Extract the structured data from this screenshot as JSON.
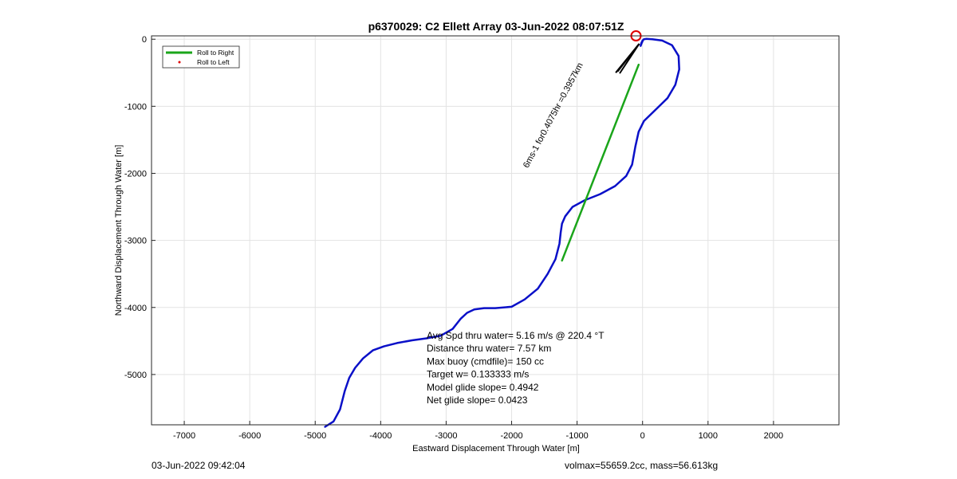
{
  "chart_data": {
    "type": "line",
    "title": "p6370029: C2 Ellett Array 03-Jun-2022 08:07:51Z",
    "xlabel": "Eastward Displacement Through Water [m]",
    "ylabel": "Northward Displacement Through Water [m]",
    "xlim": [
      -7500,
      3000
    ],
    "ylim": [
      -5750,
      50
    ],
    "xticks": [
      -7000,
      -6000,
      -5000,
      -4000,
      -3000,
      -2000,
      -1000,
      0,
      1000,
      2000
    ],
    "xtick_labels": [
      "-7000",
      "-6000",
      "-5000",
      "-4000",
      "-3000",
      "-2000",
      "-1000",
      "0",
      "1000",
      "2000"
    ],
    "yticks": [
      0,
      -1000,
      -2000,
      -3000,
      -4000,
      -5000
    ],
    "ytick_labels": [
      "0",
      "-1000",
      "-2000",
      "-3000",
      "-4000",
      "-5000"
    ],
    "grid": true,
    "legend": {
      "placement": "top-left",
      "entries": [
        {
          "label": "Roll to Right",
          "color": "#1aa51a",
          "style": "line"
        },
        {
          "label": "Roll to Left",
          "color": "#e00000",
          "style": "dot"
        }
      ]
    },
    "series": [
      {
        "color": "#0a10c8",
        "x": [
          -4850,
          -4720,
          -4620,
          -4550,
          -4480,
          -4390,
          -4270,
          -4120,
          -3950,
          -3750,
          -3520,
          -3300,
          -3080,
          -2900,
          -2780,
          -2680,
          -2570,
          -2420,
          -2250,
          -2000,
          -1800,
          -1600,
          -1450,
          -1330,
          -1270,
          -1250,
          -1230,
          -1180,
          -1070,
          -880,
          -650,
          -420,
          -250,
          -160,
          -110,
          -60,
          20,
          200,
          380,
          500,
          560,
          550,
          450,
          300,
          150,
          60,
          20,
          0,
          -20,
          -30,
          -15,
          10
        ],
        "y": [
          -5780,
          -5700,
          -5520,
          -5250,
          -5050,
          -4900,
          -4760,
          -4640,
          -4580,
          -4530,
          -4490,
          -4460,
          -4420,
          -4320,
          -4170,
          -4080,
          -4030,
          -4010,
          -4010,
          -3990,
          -3880,
          -3720,
          -3500,
          -3280,
          -3050,
          -2880,
          -2750,
          -2640,
          -2500,
          -2400,
          -2310,
          -2190,
          -2040,
          -1870,
          -1600,
          -1380,
          -1220,
          -1050,
          -880,
          -680,
          -450,
          -250,
          -90,
          -20,
          0,
          5,
          0,
          -20,
          -60,
          -100,
          -60,
          -10
        ]
      },
      {
        "name": "Roll to Right",
        "color": "#1aa51a",
        "x": [
          -1230,
          -60
        ],
        "y": [
          -3300,
          -380
        ]
      }
    ],
    "markers": [
      {
        "name": "end-point",
        "color": "#e00000",
        "x": -100,
        "y": 50
      }
    ],
    "annotations": [
      {
        "text": "6ms-1 for0.4075hr =0.3957km",
        "color": "#000000",
        "x": -1800,
        "y": -1880,
        "angle_deg": -62
      }
    ],
    "stats": [
      "Avg Spd thru water=  5.16 m/s @ 220.4 °T",
      "Distance thru water=  7.57 km",
      "Max buoy (cmdfile)= 150 cc",
      "Target w= 0.133333 m/s",
      "Model glide slope= 0.4942",
      "Net glide slope= 0.0423"
    ]
  },
  "footer": {
    "left": "03-Jun-2022 09:42:04",
    "right": "volmax=55659.2cc, mass=56.613kg"
  }
}
